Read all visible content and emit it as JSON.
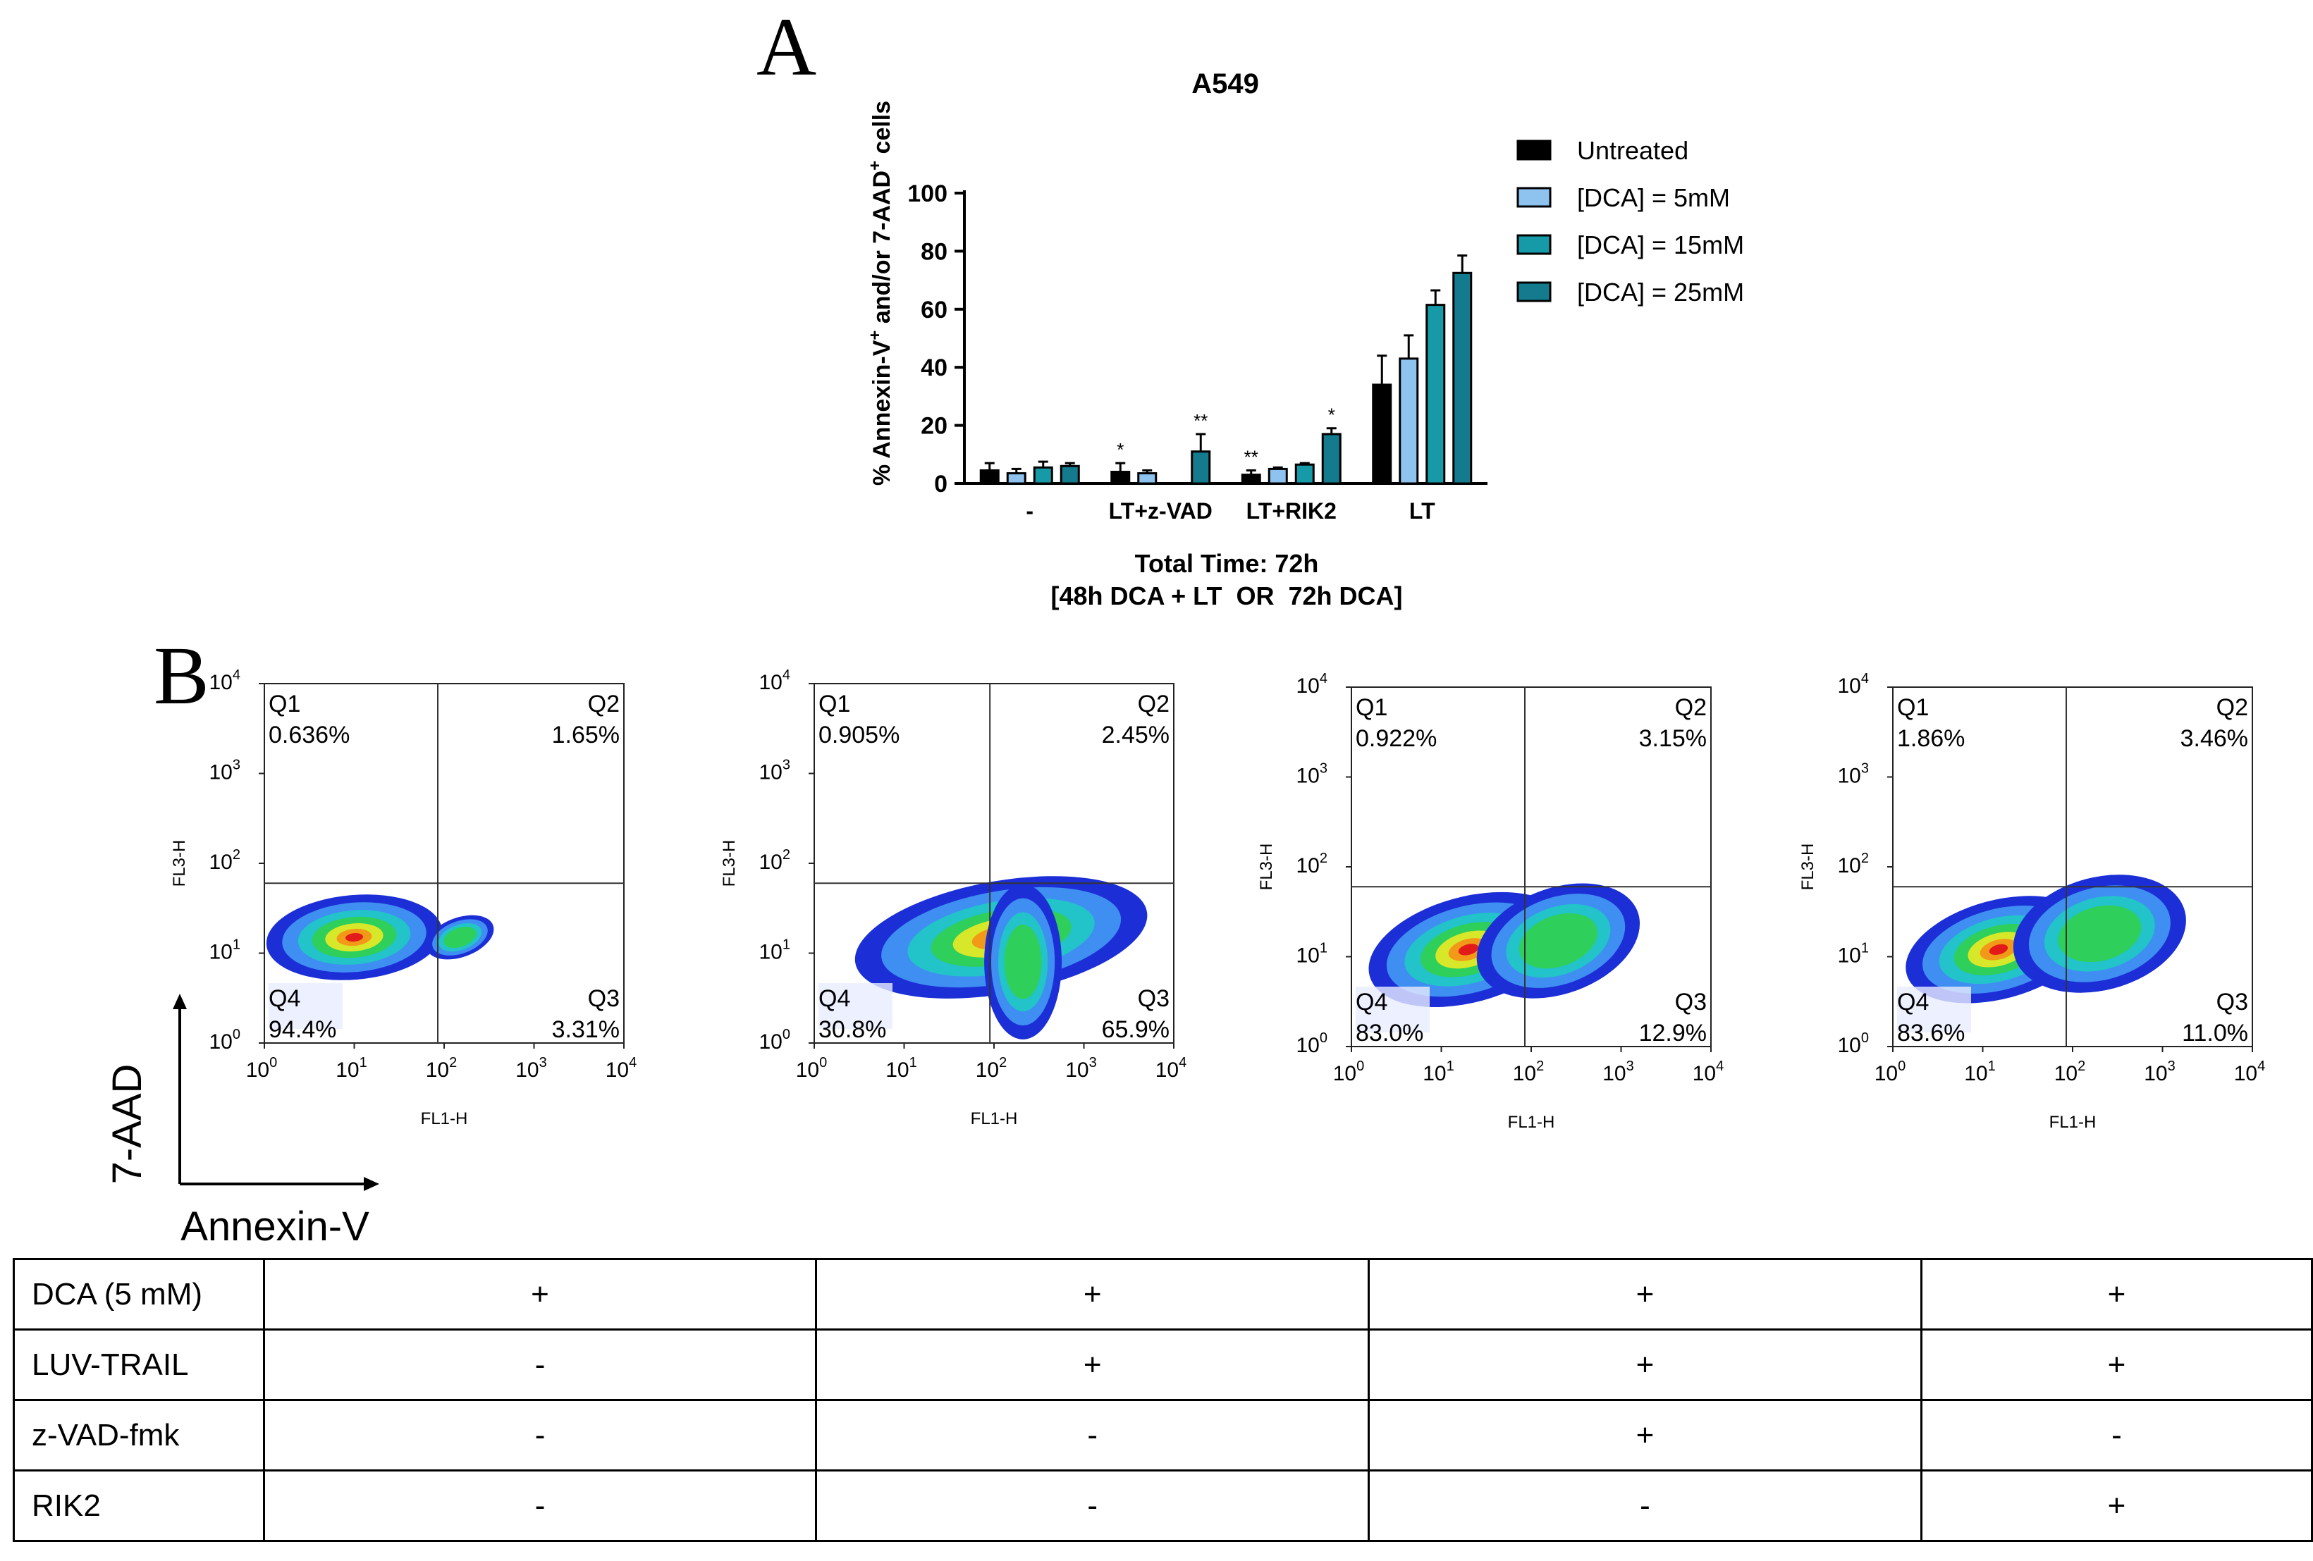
{
  "panels": {
    "a": "A",
    "b": "B"
  },
  "chart_data": [
    {
      "type": "bar",
      "title": "A549",
      "ylabel": "% Annexin-V+ and/or 7-AAD+ cells",
      "ylabel_parts": {
        "p1": "% Annexin-V",
        "sup1": "+",
        "p2": " and/or 7-AAD",
        "sup2": "+",
        "p3": " cells"
      },
      "xlabel_lines": [
        "Total Time: 72h",
        "[48h DCA + LT  OR  72h DCA]"
      ],
      "categories": [
        "-",
        "LT+z-VAD",
        "LT+RIK2",
        "LT"
      ],
      "ylim": [
        0,
        100
      ],
      "yticks": [
        0,
        20,
        40,
        60,
        80,
        100
      ],
      "legend_position": "right",
      "grid": false,
      "series": [
        {
          "name": "Untreated",
          "color": "#000000",
          "values": [
            4.5,
            4.0,
            3.0,
            34.0
          ],
          "errors": [
            2.5,
            3.0,
            1.5,
            10.0
          ],
          "significance": [
            "",
            "*",
            "**",
            ""
          ]
        },
        {
          "name": "[DCA] = 5mM",
          "color": "#8ec3f0",
          "values": [
            3.5,
            3.5,
            5.0,
            43.0
          ],
          "errors": [
            1.5,
            1.0,
            0.5,
            8.0
          ],
          "significance": [
            "",
            "",
            "",
            ""
          ]
        },
        {
          "name": "[DCA] = 15mM",
          "color": "#179aa8",
          "values": [
            5.5,
            null,
            6.5,
            61.5
          ],
          "errors": [
            2.0,
            null,
            0.5,
            5.0
          ],
          "significance": [
            "",
            "",
            "",
            ""
          ]
        },
        {
          "name": "[DCA] = 25mM",
          "color": "#147b8e",
          "values": [
            6.0,
            11.0,
            17.0,
            72.5
          ],
          "errors": [
            1.0,
            6.0,
            2.0,
            6.0
          ],
          "significance": [
            "",
            "**",
            "*",
            ""
          ]
        }
      ]
    },
    {
      "type": "scatter",
      "subtype": "flow-cytometry-density",
      "xlabel": "FL1-H",
      "ylabel": "FL3-H",
      "xscale": "log",
      "yscale": "log",
      "xlim": [
        1,
        10000
      ],
      "ylim": [
        1,
        10000
      ],
      "tick_labels": [
        "10",
        "10",
        "10",
        "10",
        "10"
      ],
      "tick_exponents": [
        "0",
        "1",
        "2",
        "3",
        "4"
      ],
      "plots": [
        {
          "gate_x": 85,
          "gate_y": 60,
          "quadrants": {
            "Q1": "0.636%",
            "Q2": "1.65%",
            "Q3": "3.31%",
            "Q4": "94.4%"
          }
        },
        {
          "gate_x": 90,
          "gate_y": 60,
          "quadrants": {
            "Q1": "0.905%",
            "Q2": "2.45%",
            "Q3": "65.9%",
            "Q4": "30.8%"
          }
        },
        {
          "gate_x": 85,
          "gate_y": 60,
          "quadrants": {
            "Q1": "0.922%",
            "Q2": "3.15%",
            "Q3": "12.9%",
            "Q4": "83.0%"
          }
        },
        {
          "gate_x": 85,
          "gate_y": 60,
          "quadrants": {
            "Q1": "1.86%",
            "Q2": "3.46%",
            "Q3": "11.0%",
            "Q4": "83.6%"
          }
        }
      ],
      "quadrant_names": [
        "Q1",
        "Q2",
        "Q3",
        "Q4"
      ]
    }
  ],
  "axis_key": {
    "y": "7-AAD",
    "x": "Annexin-V"
  },
  "treatment_table": {
    "rows": [
      {
        "label": "DCA (5 mM)",
        "values": [
          "+",
          "+",
          "+",
          "+"
        ]
      },
      {
        "label": "LUV-TRAIL",
        "values": [
          "-",
          "+",
          "+",
          "+"
        ]
      },
      {
        "label": "z-VAD-fmk",
        "values": [
          "-",
          "-",
          "+",
          "-"
        ]
      },
      {
        "label": "RIK2",
        "values": [
          "-",
          "-",
          "-",
          "+"
        ]
      }
    ]
  }
}
